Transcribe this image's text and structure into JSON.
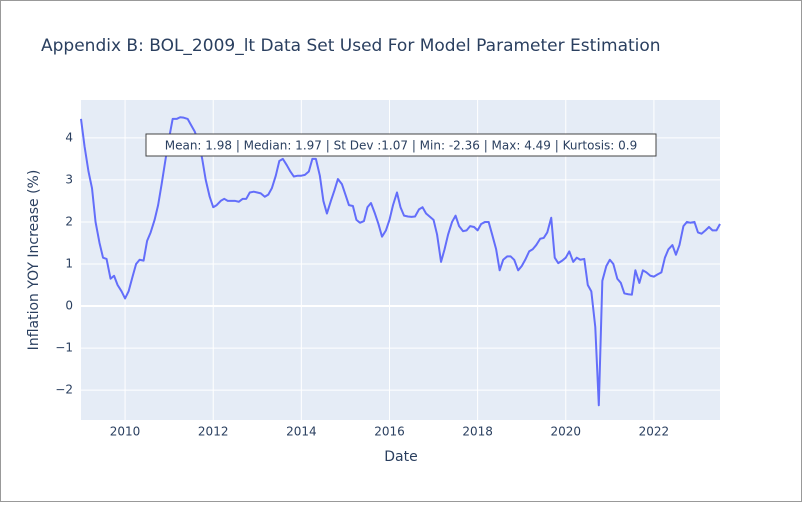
{
  "chart_data": {
    "type": "line",
    "title": "Appendix B: BOL_2009_lt Data Set Used For Model Parameter Estimation",
    "x_label": "Date",
    "y_label": "Inflation YOY Increase (%)",
    "annotation": "Mean: 1.98 | Median: 1.97 | St Dev :1.07 | Min: -2.36 | Max: 4.49 | Kurtosis: 0.9",
    "color": "#636efa",
    "grid": true,
    "xlim": [
      2009,
      2023.5
    ],
    "xticks": [
      2010,
      2012,
      2014,
      2016,
      2018,
      2020,
      2022
    ],
    "ylim": [
      -2.71,
      4.9
    ],
    "yticks": [
      {
        "value": -2,
        "label": "−2"
      },
      {
        "value": -1,
        "label": "−1"
      },
      0,
      1,
      2,
      3,
      4
    ],
    "x": [
      2009.0,
      2009.08,
      2009.17,
      2009.25,
      2009.33,
      2009.42,
      2009.5,
      2009.58,
      2009.67,
      2009.75,
      2009.83,
      2009.92,
      2010.0,
      2010.08,
      2010.17,
      2010.25,
      2010.33,
      2010.42,
      2010.5,
      2010.58,
      2010.67,
      2010.75,
      2010.83,
      2010.92,
      2011.0,
      2011.08,
      2011.17,
      2011.25,
      2011.33,
      2011.42,
      2011.5,
      2011.58,
      2011.67,
      2011.75,
      2011.83,
      2011.92,
      2012.0,
      2012.08,
      2012.17,
      2012.25,
      2012.33,
      2012.42,
      2012.5,
      2012.58,
      2012.67,
      2012.75,
      2012.83,
      2012.92,
      2013.0,
      2013.08,
      2013.17,
      2013.25,
      2013.33,
      2013.42,
      2013.5,
      2013.58,
      2013.67,
      2013.75,
      2013.83,
      2013.92,
      2014.0,
      2014.08,
      2014.17,
      2014.25,
      2014.33,
      2014.42,
      2014.5,
      2014.58,
      2014.67,
      2014.75,
      2014.83,
      2014.92,
      2015.0,
      2015.08,
      2015.17,
      2015.25,
      2015.33,
      2015.42,
      2015.5,
      2015.58,
      2015.67,
      2015.75,
      2015.83,
      2015.92,
      2016.0,
      2016.08,
      2016.17,
      2016.25,
      2016.33,
      2016.42,
      2016.5,
      2016.58,
      2016.67,
      2016.75,
      2016.83,
      2016.92,
      2017.0,
      2017.08,
      2017.17,
      2017.25,
      2017.33,
      2017.42,
      2017.5,
      2017.58,
      2017.67,
      2017.75,
      2017.83,
      2017.92,
      2018.0,
      2018.08,
      2018.17,
      2018.25,
      2018.33,
      2018.42,
      2018.5,
      2018.58,
      2018.67,
      2018.75,
      2018.83,
      2018.92,
      2019.0,
      2019.08,
      2019.17,
      2019.25,
      2019.33,
      2019.42,
      2019.5,
      2019.58,
      2019.67,
      2019.75,
      2019.83,
      2019.92,
      2020.0,
      2020.08,
      2020.17,
      2020.25,
      2020.33,
      2020.42,
      2020.5,
      2020.58,
      2020.67,
      2020.75,
      2020.83,
      2020.92,
      2021.0,
      2021.08,
      2021.17,
      2021.25,
      2021.33,
      2021.42,
      2021.5,
      2021.58,
      2021.67,
      2021.75,
      2021.83,
      2021.92,
      2022.0,
      2022.08,
      2022.17,
      2022.25,
      2022.33,
      2022.42,
      2022.5,
      2022.58,
      2022.67,
      2022.75,
      2022.83,
      2022.92,
      2023.0,
      2023.08,
      2023.17,
      2023.25,
      2023.33,
      2023.42,
      2023.5
    ],
    "values": [
      4.45,
      3.8,
      3.2,
      2.8,
      2.0,
      1.5,
      1.15,
      1.12,
      0.65,
      0.72,
      0.5,
      0.35,
      0.18,
      0.35,
      0.7,
      1.0,
      1.1,
      1.08,
      1.55,
      1.75,
      2.05,
      2.4,
      2.9,
      3.5,
      4.0,
      4.45,
      4.45,
      4.49,
      4.48,
      4.45,
      4.3,
      4.15,
      3.9,
      3.5,
      3.0,
      2.6,
      2.35,
      2.4,
      2.5,
      2.55,
      2.5,
      2.5,
      2.5,
      2.48,
      2.55,
      2.55,
      2.7,
      2.72,
      2.7,
      2.68,
      2.6,
      2.65,
      2.8,
      3.1,
      3.45,
      3.5,
      3.35,
      3.2,
      3.08,
      3.1,
      3.1,
      3.12,
      3.2,
      3.5,
      3.5,
      3.1,
      2.5,
      2.2,
      2.5,
      2.75,
      3.02,
      2.9,
      2.65,
      2.4,
      2.38,
      2.05,
      1.98,
      2.02,
      2.35,
      2.45,
      2.2,
      1.95,
      1.65,
      1.8,
      2.05,
      2.4,
      2.7,
      2.35,
      2.15,
      2.13,
      2.12,
      2.13,
      2.3,
      2.35,
      2.2,
      2.12,
      2.05,
      1.7,
      1.05,
      1.35,
      1.7,
      2.0,
      2.15,
      1.9,
      1.78,
      1.8,
      1.9,
      1.88,
      1.8,
      1.95,
      2.0,
      2.0,
      1.7,
      1.35,
      0.85,
      1.1,
      1.18,
      1.18,
      1.1,
      0.85,
      0.95,
      1.1,
      1.3,
      1.35,
      1.45,
      1.6,
      1.62,
      1.75,
      2.1,
      1.15,
      1.02,
      1.08,
      1.15,
      1.3,
      1.05,
      1.15,
      1.1,
      1.12,
      0.5,
      0.35,
      -0.5,
      -2.36,
      0.6,
      0.95,
      1.1,
      1.0,
      0.65,
      0.55,
      0.3,
      0.28,
      0.27,
      0.85,
      0.55,
      0.85,
      0.8,
      0.72,
      0.7,
      0.75,
      0.8,
      1.15,
      1.35,
      1.45,
      1.22,
      1.45,
      1.9,
      2.0,
      1.98,
      2.0,
      1.75,
      1.72,
      1.8,
      1.88,
      1.8,
      1.8,
      1.95
    ]
  }
}
